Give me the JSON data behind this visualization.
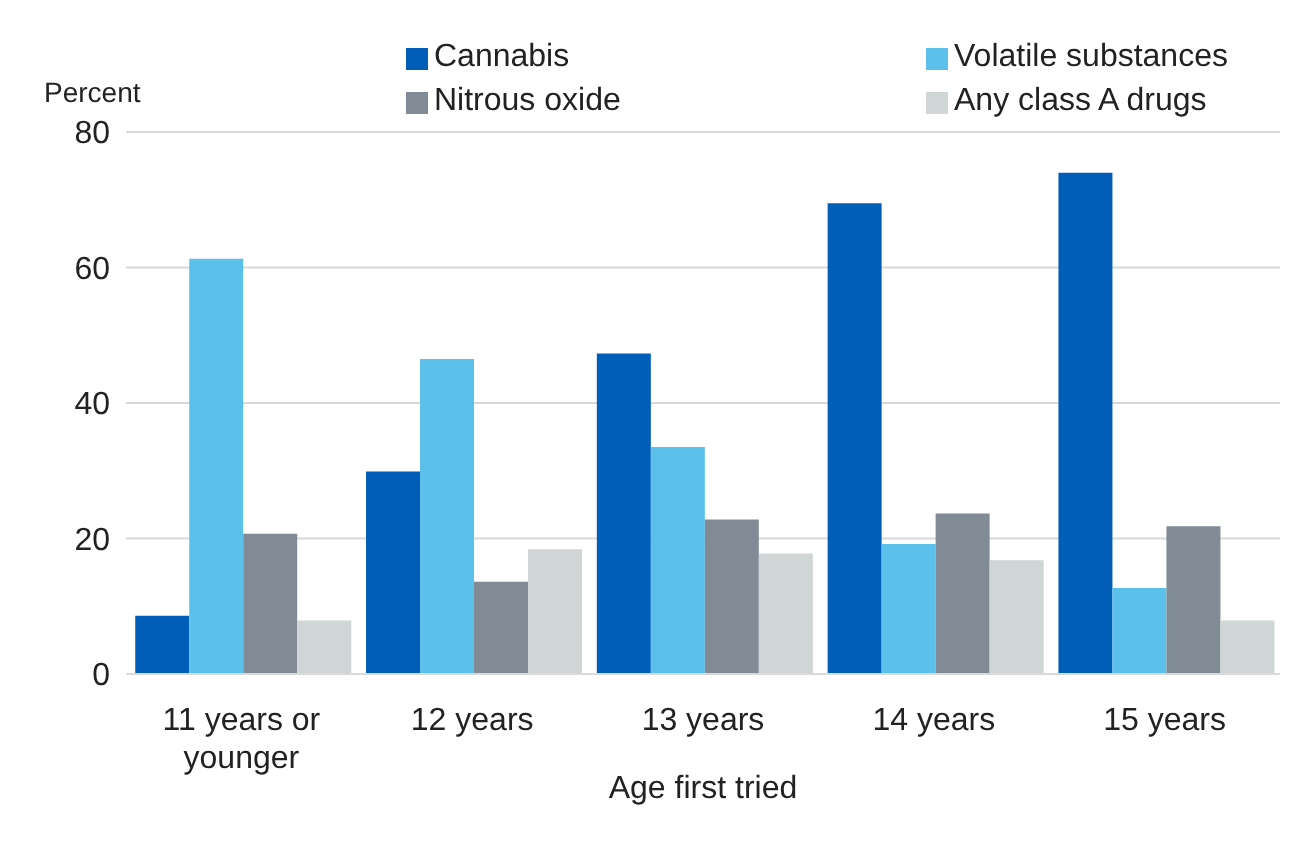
{
  "chart_data": {
    "type": "bar",
    "ylabel": "Percent",
    "xlabel": "Age first tried",
    "categories": [
      "11 years or younger",
      "12 years",
      "13 years",
      "14 years",
      "15 years"
    ],
    "series": [
      {
        "name": "Cannabis",
        "color": "#005eb8",
        "values": [
          8.6,
          29.9,
          47.3,
          69.5,
          74.0
        ]
      },
      {
        "name": "Volatile substances",
        "color": "#5bc0ea",
        "values": [
          61.3,
          46.5,
          33.5,
          19.2,
          12.7
        ]
      },
      {
        "name": "Nitrous oxide",
        "color": "#818b95",
        "values": [
          20.7,
          13.6,
          22.8,
          23.7,
          21.8
        ]
      },
      {
        "name": "Any class A drugs",
        "color": "#d0d5d6",
        "values": [
          7.9,
          18.4,
          17.8,
          16.8,
          7.9
        ]
      }
    ],
    "ylim": [
      0,
      80
    ],
    "yticks": [
      0,
      20,
      40,
      60,
      80
    ],
    "grid": "y",
    "legend": "top"
  }
}
